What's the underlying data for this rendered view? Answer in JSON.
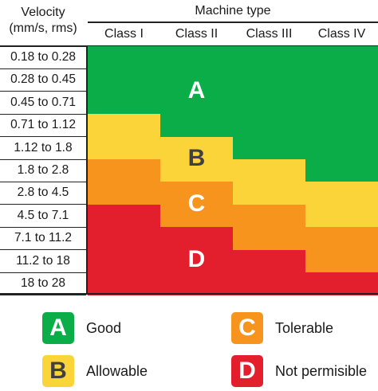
{
  "header": {
    "velocity_line1": "Velocity",
    "velocity_line2": "(mm/s, rms)",
    "machine_type": "Machine type",
    "classes": [
      "Class I",
      "Class II",
      "Class III",
      "Class IV"
    ]
  },
  "rows": [
    "0.18 to 0.28",
    "0.28 to 0.45",
    "0.45 to 0.71",
    "0.71 to 1.12",
    "1.12 to 1.8",
    "1.8 to 2.8",
    "2.8 to 4.5",
    "4.5 to 7.1",
    "7.1 to 11.2",
    "11.2 to 18",
    "18 to 28"
  ],
  "grid_zones": [
    [
      "A",
      "A",
      "A",
      "A"
    ],
    [
      "A",
      "A",
      "A",
      "A"
    ],
    [
      "A",
      "A",
      "A",
      "A"
    ],
    [
      "B",
      "A",
      "A",
      "A"
    ],
    [
      "B",
      "B",
      "A",
      "A"
    ],
    [
      "C",
      "B",
      "B",
      "A"
    ],
    [
      "C",
      "C",
      "B",
      "B"
    ],
    [
      "D",
      "C",
      "C",
      "B"
    ],
    [
      "D",
      "D",
      "C",
      "C"
    ],
    [
      "D",
      "D",
      "D",
      "C"
    ],
    [
      "D",
      "D",
      "D",
      "D"
    ]
  ],
  "zones": {
    "A": {
      "letter": "A",
      "label": "Good",
      "color": "#0aad48",
      "text_color": "#ffffff"
    },
    "B": {
      "letter": "B",
      "label": "Allowable",
      "color": "#fbd43a",
      "text_color": "#404040"
    },
    "C": {
      "letter": "C",
      "label": "Tolerable",
      "color": "#f7941e",
      "text_color": "#ffffff"
    },
    "D": {
      "letter": "D",
      "label": "Not permisible",
      "color": "#e31e2d",
      "text_color": "#ffffff"
    }
  }
}
